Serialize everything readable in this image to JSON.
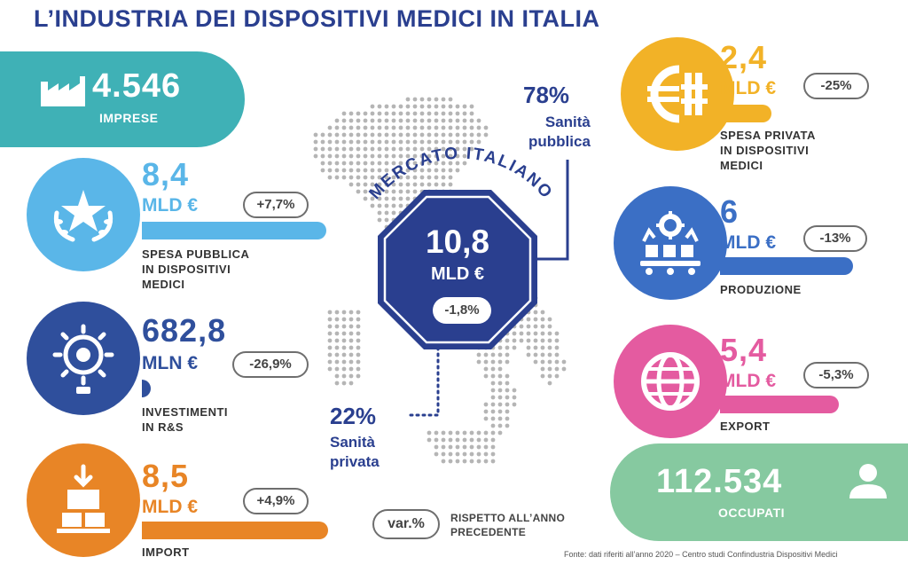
{
  "title": "L’INDUSTRIA DEI DISPOSITIVI MEDICI IN ITALIA",
  "imprese": {
    "value": "4.546",
    "label": "IMPRESE",
    "icon": "factory-icon"
  },
  "spesa_pubblica": {
    "value": "8,4",
    "unit": "MLD €",
    "change": "+7,7%",
    "label_lines": [
      "SPESA PUBBLICA",
      "IN DISPOSITIVI",
      "MEDICI"
    ],
    "icon": "star-laurel-icon",
    "color": "#5ab6e8"
  },
  "investimenti": {
    "value": "682,8",
    "unit": "MLN €",
    "change": "-26,9%",
    "label_lines": [
      "INVESTIMENTI",
      "IN R&S"
    ],
    "icon": "lightbulb-gear-icon",
    "color": "#2f4f9c"
  },
  "import": {
    "value": "8,5",
    "unit": "MLD €",
    "change": "+4,9%",
    "label_lines": [
      "IMPORT"
    ],
    "icon": "box-import-icon",
    "color": "#e88526"
  },
  "spesa_privata": {
    "value": "2,4",
    "unit": "MLD €",
    "change": "-25%",
    "label_lines": [
      "SPESA PRIVATA",
      "IN DISPOSITIVI",
      "MEDICI"
    ],
    "icon": "euro-coin-icon",
    "color": "#f2b227"
  },
  "produzione": {
    "value": "6",
    "unit": "MLD €",
    "change": "-13%",
    "label_lines": [
      "PRODUZIONE"
    ],
    "icon": "production-line-icon",
    "color": "#3b6fc5"
  },
  "export": {
    "value": "5,4",
    "unit": "MLD €",
    "change": "-5,3%",
    "label_lines": [
      "EXPORT"
    ],
    "icon": "globe-icon",
    "color": "#e45ba0"
  },
  "occupati": {
    "value": "112.534",
    "label": "OCCUPATI",
    "icon": "person-icon"
  },
  "mercato": {
    "heading": "MERCATO ITALIANO",
    "value": "10,8",
    "unit": "MLD €",
    "change": "-1,8%"
  },
  "pubblica": {
    "pct": "78%",
    "line1": "Sanità",
    "line2": "pubblica"
  },
  "privata": {
    "pct": "22%",
    "line1": "Sanità",
    "line2": "privata"
  },
  "legend": {
    "badge": "var.%",
    "line1": "RISPETTO ALL’ANNO",
    "line2": "PRECEDENTE"
  },
  "source": "Fonte: dati riferiti all’anno 2020 – Centro studi Confindustria Dispositivi Medici"
}
